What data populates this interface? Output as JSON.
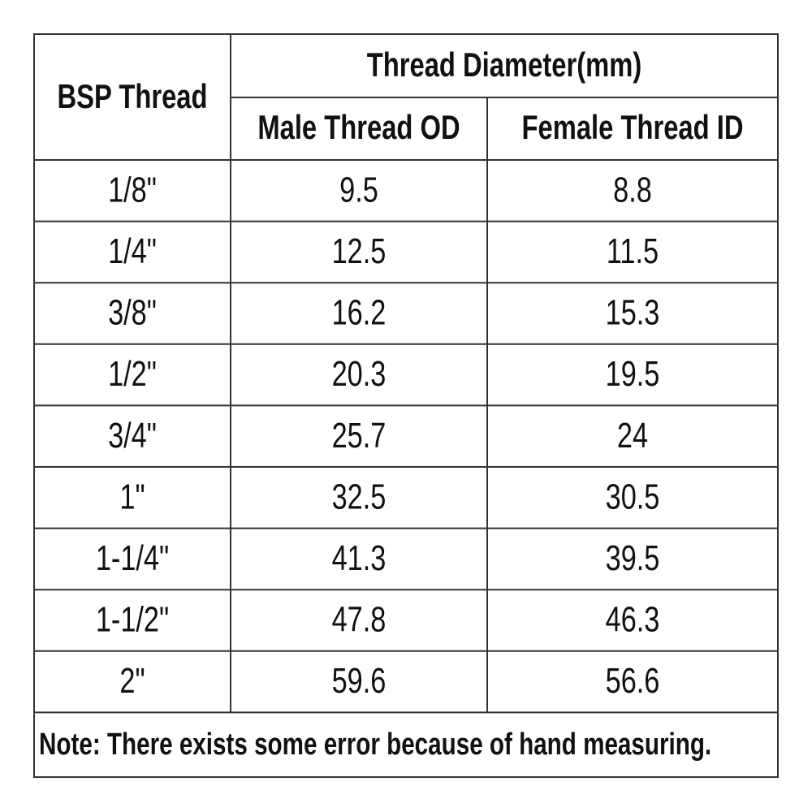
{
  "table": {
    "header": {
      "first": "BSP Thread",
      "group": "Thread Diameter(mm)",
      "columns": [
        "Male Thread OD",
        "Female Thread ID"
      ]
    },
    "rows": [
      [
        "1/8\"",
        "9.5",
        "8.8"
      ],
      [
        "1/4\"",
        "12.5",
        "11.5"
      ],
      [
        "3/8\"",
        "16.2",
        "15.3"
      ],
      [
        "1/2\"",
        "20.3",
        "19.5"
      ],
      [
        "3/4\"",
        "25.7",
        "24"
      ],
      [
        "1\"",
        "32.5",
        "30.5"
      ],
      [
        "1-1/4\"",
        "41.3",
        "39.5"
      ],
      [
        "1-1/2\"",
        "47.8",
        "46.3"
      ],
      [
        "2\"",
        "59.6",
        "56.6"
      ]
    ],
    "note": "Note: There exists some error because of hand measuring."
  }
}
